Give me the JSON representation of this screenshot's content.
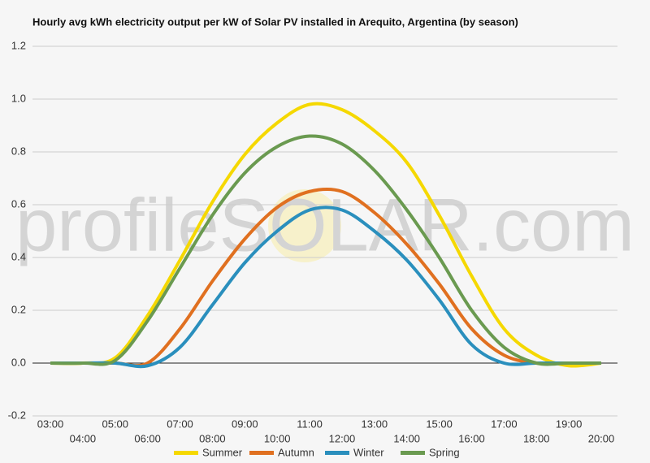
{
  "chart_data": {
    "type": "line",
    "title": "Hourly avg kWh electricity output per kW of Solar PV installed in Arequito, Argentina (by season)",
    "watermark": "profileSOLAR.com",
    "categories": [
      "03:00",
      "04:00",
      "05:00",
      "06:00",
      "07:00",
      "08:00",
      "09:00",
      "10:00",
      "11:00",
      "12:00",
      "13:00",
      "14:00",
      "15:00",
      "16:00",
      "17:00",
      "18:00",
      "19:00",
      "20:00"
    ],
    "series": [
      {
        "name": "Summer",
        "color": "#f5d800",
        "values": [
          0,
          0,
          0.02,
          0.18,
          0.39,
          0.61,
          0.79,
          0.91,
          0.98,
          0.96,
          0.88,
          0.76,
          0.56,
          0.33,
          0.13,
          0.03,
          -0.01,
          0
        ]
      },
      {
        "name": "Autumn",
        "color": "#e07020",
        "values": [
          0,
          0,
          0,
          0,
          0.13,
          0.31,
          0.47,
          0.59,
          0.65,
          0.65,
          0.57,
          0.45,
          0.3,
          0.13,
          0.03,
          0,
          0,
          0
        ]
      },
      {
        "name": "Winter",
        "color": "#2a8fbd",
        "values": [
          0,
          0,
          0,
          -0.01,
          0.06,
          0.22,
          0.38,
          0.5,
          0.58,
          0.58,
          0.5,
          0.39,
          0.24,
          0.07,
          0,
          0,
          0,
          0
        ]
      },
      {
        "name": "Spring",
        "color": "#6a9a50",
        "values": [
          0,
          0,
          0.01,
          0.16,
          0.36,
          0.56,
          0.72,
          0.82,
          0.86,
          0.83,
          0.73,
          0.58,
          0.4,
          0.2,
          0.06,
          0,
          0,
          0
        ]
      }
    ],
    "ylim": [
      -0.2,
      1.2
    ],
    "yticks": [
      -0.2,
      {
        "value": 0,
        "label": "0.0"
      },
      0.2,
      0.4,
      0.6,
      0.8,
      {
        "value": 1,
        "label": "1.0"
      },
      1.2
    ],
    "grid": true,
    "legend": "bottom"
  }
}
